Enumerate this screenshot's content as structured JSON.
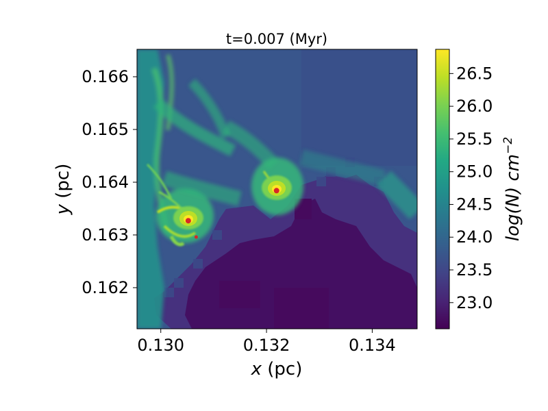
{
  "chart_data": {
    "type": "heatmap",
    "title": "t=0.007 (Myr)",
    "xlabel_var": "x",
    "xlabel_unit": " (pc)",
    "ylabel_var": "y",
    "ylabel_unit": " (pc)",
    "xlim": [
      0.12955,
      0.13485
    ],
    "ylim": [
      0.16122,
      0.16652
    ],
    "xticks": [
      0.13,
      0.132,
      0.134
    ],
    "xtick_labels": [
      "0.130",
      "0.132",
      "0.134"
    ],
    "yticks": [
      0.162,
      0.163,
      0.164,
      0.165,
      0.166
    ],
    "ytick_labels": [
      "0.162",
      "0.163",
      "0.164",
      "0.165",
      "0.166"
    ],
    "colorbar": {
      "label": "log(N) cm",
      "label_exponent": "−2",
      "range": [
        22.6,
        26.87
      ],
      "colormap": "viridis",
      "ticks": [
        23.0,
        23.5,
        24.0,
        24.5,
        25.0,
        25.5,
        26.0,
        26.5
      ],
      "tick_labels": [
        "23.0",
        "23.5",
        "24.0",
        "24.5",
        "25.0",
        "25.5",
        "26.0",
        "26.5"
      ]
    },
    "sinks": [
      {
        "x": 0.13219,
        "y": 0.16384,
        "size": "large",
        "color": "#d62728"
      },
      {
        "x": 0.13052,
        "y": 0.16327,
        "size": "large",
        "color": "#d62728"
      },
      {
        "x": 0.13067,
        "y": 0.16296,
        "size": "small",
        "color": "#d62728"
      }
    ],
    "dense_cores": [
      {
        "x": 0.13219,
        "y": 0.16384,
        "peak": 26.87
      },
      {
        "x": 0.13052,
        "y": 0.16327,
        "peak": 26.8
      }
    ]
  }
}
